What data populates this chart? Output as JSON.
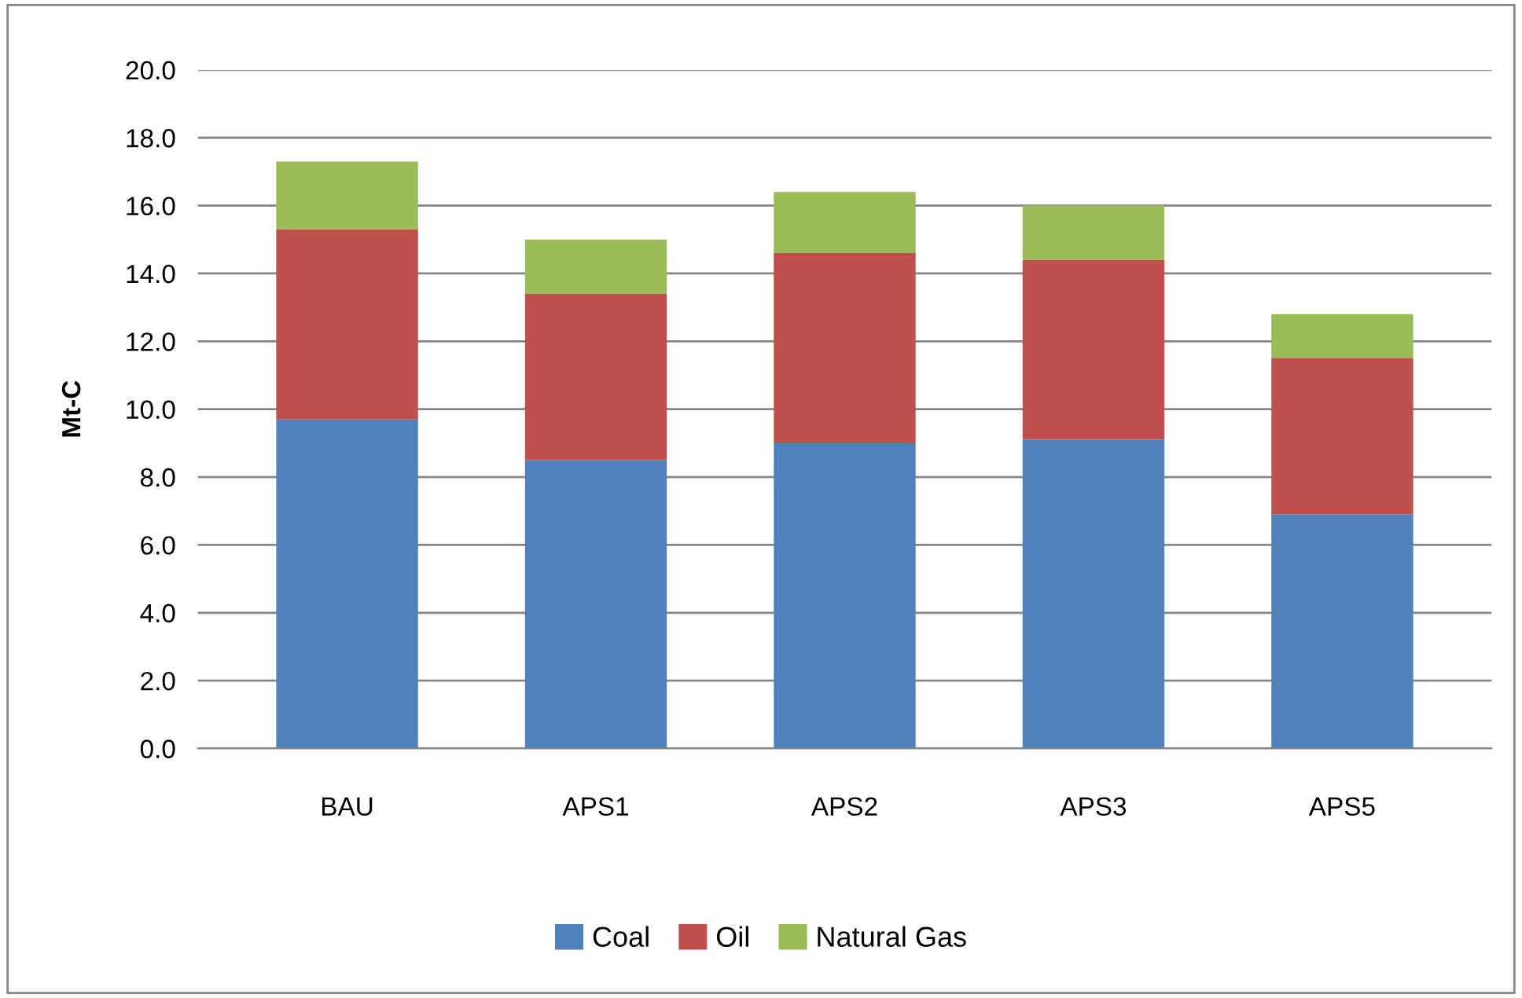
{
  "chart_data": {
    "type": "bar",
    "stacked": true,
    "ylabel": "Mt-C",
    "categories": [
      "BAU",
      "APS1",
      "APS2",
      "APS3",
      "APS5"
    ],
    "series": [
      {
        "name": "Coal",
        "color": "#4f81bd",
        "values": [
          9.7,
          8.5,
          9.0,
          9.1,
          6.9
        ]
      },
      {
        "name": "Oil",
        "color": "#c0504d",
        "values": [
          5.6,
          4.9,
          5.6,
          5.3,
          4.6
        ]
      },
      {
        "name": "Natural Gas",
        "color": "#9bbb59",
        "values": [
          2.0,
          1.6,
          1.8,
          1.6,
          1.3
        ]
      }
    ],
    "ylim": [
      0,
      20
    ],
    "yticks": [
      {
        "value": 0,
        "label": "0.0"
      },
      {
        "value": 2,
        "label": "2.0"
      },
      {
        "value": 4,
        "label": "4.0"
      },
      {
        "value": 6,
        "label": "6.0"
      },
      {
        "value": 8,
        "label": "8.0"
      },
      {
        "value": 10,
        "label": "10.0"
      },
      {
        "value": 12,
        "label": "12.0"
      },
      {
        "value": 14,
        "label": "14.0"
      },
      {
        "value": 16,
        "label": "16.0"
      },
      {
        "value": 18,
        "label": "18.0"
      },
      {
        "value": 20,
        "label": "20.0"
      }
    ],
    "grid": "y",
    "legend": "bottom"
  }
}
